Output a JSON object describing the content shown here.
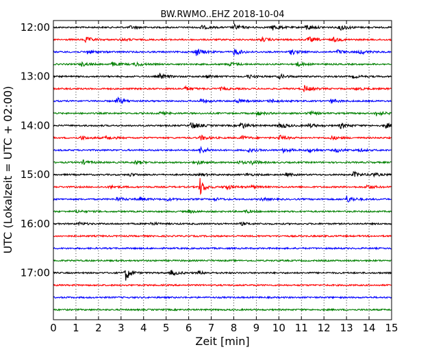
{
  "chart_data": {
    "type": "line",
    "subtype": "helicorder",
    "title": "BW.RWMO..EHZ 2018-10-04",
    "xlabel": "Zeit  [min]",
    "ylabel": "UTC (Lokalzeit = UTC + 02:00)",
    "xlim": [
      0,
      15
    ],
    "x_ticks": [
      0,
      1,
      2,
      3,
      4,
      5,
      6,
      7,
      8,
      9,
      10,
      11,
      12,
      13,
      14,
      15
    ],
    "x_tick_labels": [
      "0",
      "1",
      "2",
      "3",
      "4",
      "5",
      "6",
      "7",
      "8",
      "9",
      "10",
      "11",
      "12",
      "13",
      "14",
      "15"
    ],
    "y_tick_labels": [
      "12:00",
      "13:00",
      "14:00",
      "15:00",
      "16:00",
      "17:00"
    ],
    "grid": "vertical dotted at every minute",
    "trace_interval_minutes": 15,
    "trace_colors": [
      "#000000",
      "#ff0000",
      "#0000ff",
      "#008000"
    ],
    "traces": [
      {
        "start": "12:00",
        "color": "#000000",
        "events": [
          [
            6.5,
            3
          ],
          [
            8.0,
            4
          ],
          [
            9.7,
            4
          ],
          [
            11.2,
            4
          ],
          [
            12.7,
            5
          ],
          [
            3.4,
            2
          ]
        ]
      },
      {
        "start": "12:15",
        "color": "#ff0000",
        "events": [
          [
            1.4,
            4
          ],
          [
            3.0,
            2
          ],
          [
            9.2,
            3
          ],
          [
            11.3,
            4
          ],
          [
            12.4,
            3
          ]
        ]
      },
      {
        "start": "12:30",
        "color": "#0000ff",
        "events": [
          [
            1.5,
            3
          ],
          [
            6.3,
            6
          ],
          [
            8.0,
            5
          ],
          [
            10.5,
            4
          ],
          [
            12.6,
            3
          ],
          [
            13.6,
            3
          ]
        ]
      },
      {
        "start": "12:45",
        "color": "#008000",
        "events": [
          [
            1.2,
            3
          ],
          [
            2.6,
            3
          ],
          [
            3.6,
            3
          ],
          [
            7.8,
            3
          ],
          [
            10.8,
            3
          ]
        ]
      },
      {
        "start": "13:00",
        "color": "#000000",
        "events": [
          [
            4.7,
            4
          ],
          [
            6.8,
            2
          ],
          [
            8.6,
            3
          ],
          [
            10.0,
            3
          ],
          [
            13.3,
            2
          ]
        ]
      },
      {
        "start": "13:15",
        "color": "#ff0000",
        "events": [
          [
            5.8,
            3
          ],
          [
            7.4,
            2
          ],
          [
            11.1,
            5
          ],
          [
            13.4,
            2
          ]
        ]
      },
      {
        "start": "13:30",
        "color": "#0000ff",
        "events": [
          [
            2.8,
            5
          ],
          [
            6.5,
            3
          ],
          [
            8.1,
            3
          ],
          [
            9.6,
            3
          ],
          [
            12.3,
            3
          ]
        ]
      },
      {
        "start": "13:45",
        "color": "#008000",
        "events": [
          [
            4.7,
            2
          ],
          [
            9.0,
            3
          ],
          [
            11.3,
            3
          ],
          [
            14.3,
            4
          ]
        ]
      },
      {
        "start": "14:00",
        "color": "#000000",
        "events": [
          [
            6.1,
            6
          ],
          [
            8.3,
            5
          ],
          [
            10.0,
            5
          ],
          [
            11.3,
            3
          ],
          [
            12.7,
            4
          ],
          [
            14.7,
            4
          ]
        ]
      },
      {
        "start": "14:15",
        "color": "#ff0000",
        "events": [
          [
            1.2,
            3
          ],
          [
            2.3,
            3
          ],
          [
            6.5,
            4
          ],
          [
            8.3,
            3
          ],
          [
            10.0,
            4
          ],
          [
            12.3,
            3
          ]
        ]
      },
      {
        "start": "14:30",
        "color": "#0000ff",
        "events": [
          [
            6.5,
            5
          ],
          [
            8.6,
            3
          ],
          [
            10.2,
            3
          ],
          [
            11.3,
            3
          ],
          [
            12.5,
            3
          ],
          [
            13.5,
            2
          ]
        ]
      },
      {
        "start": "14:45",
        "color": "#008000",
        "events": [
          [
            1.3,
            3
          ],
          [
            3.6,
            3
          ],
          [
            6.3,
            3
          ],
          [
            8.2,
            2
          ],
          [
            8.8,
            3
          ]
        ]
      },
      {
        "start": "15:00",
        "color": "#000000",
        "events": [
          [
            3.4,
            2
          ],
          [
            6.5,
            2
          ],
          [
            8.5,
            2
          ],
          [
            10.3,
            2
          ],
          [
            13.3,
            4
          ],
          [
            14.1,
            3
          ]
        ]
      },
      {
        "start": "15:15",
        "color": "#ff0000",
        "events": [
          [
            2.5,
            2
          ],
          [
            6.5,
            13
          ],
          [
            7.6,
            4
          ],
          [
            8.7,
            2
          ],
          [
            13.9,
            3
          ]
        ]
      },
      {
        "start": "15:30",
        "color": "#0000ff",
        "events": [
          [
            2.8,
            3
          ],
          [
            3.8,
            3
          ],
          [
            5.0,
            2
          ],
          [
            7.1,
            2
          ],
          [
            9.2,
            2
          ],
          [
            13.0,
            5
          ]
        ]
      },
      {
        "start": "15:45",
        "color": "#008000",
        "events": [
          [
            1.0,
            2
          ],
          [
            6.0,
            2
          ],
          [
            8.5,
            2
          ]
        ]
      },
      {
        "start": "16:00",
        "color": "#000000",
        "events": [
          [
            1.1,
            2
          ],
          [
            4.3,
            2
          ],
          [
            8.3,
            2
          ]
        ]
      },
      {
        "start": "16:15",
        "color": "#ff0000",
        "events": []
      },
      {
        "start": "16:30",
        "color": "#0000ff",
        "events": []
      },
      {
        "start": "16:45",
        "color": "#008000",
        "events": []
      },
      {
        "start": "17:00",
        "color": "#000000",
        "events": [
          [
            3.2,
            12
          ],
          [
            5.2,
            4
          ],
          [
            6.4,
            2
          ]
        ]
      },
      {
        "start": "17:15",
        "color": "#ff0000",
        "events": []
      },
      {
        "start": "17:30",
        "color": "#0000ff",
        "events": []
      },
      {
        "start": "17:45",
        "color": "#008000",
        "events": []
      }
    ]
  }
}
